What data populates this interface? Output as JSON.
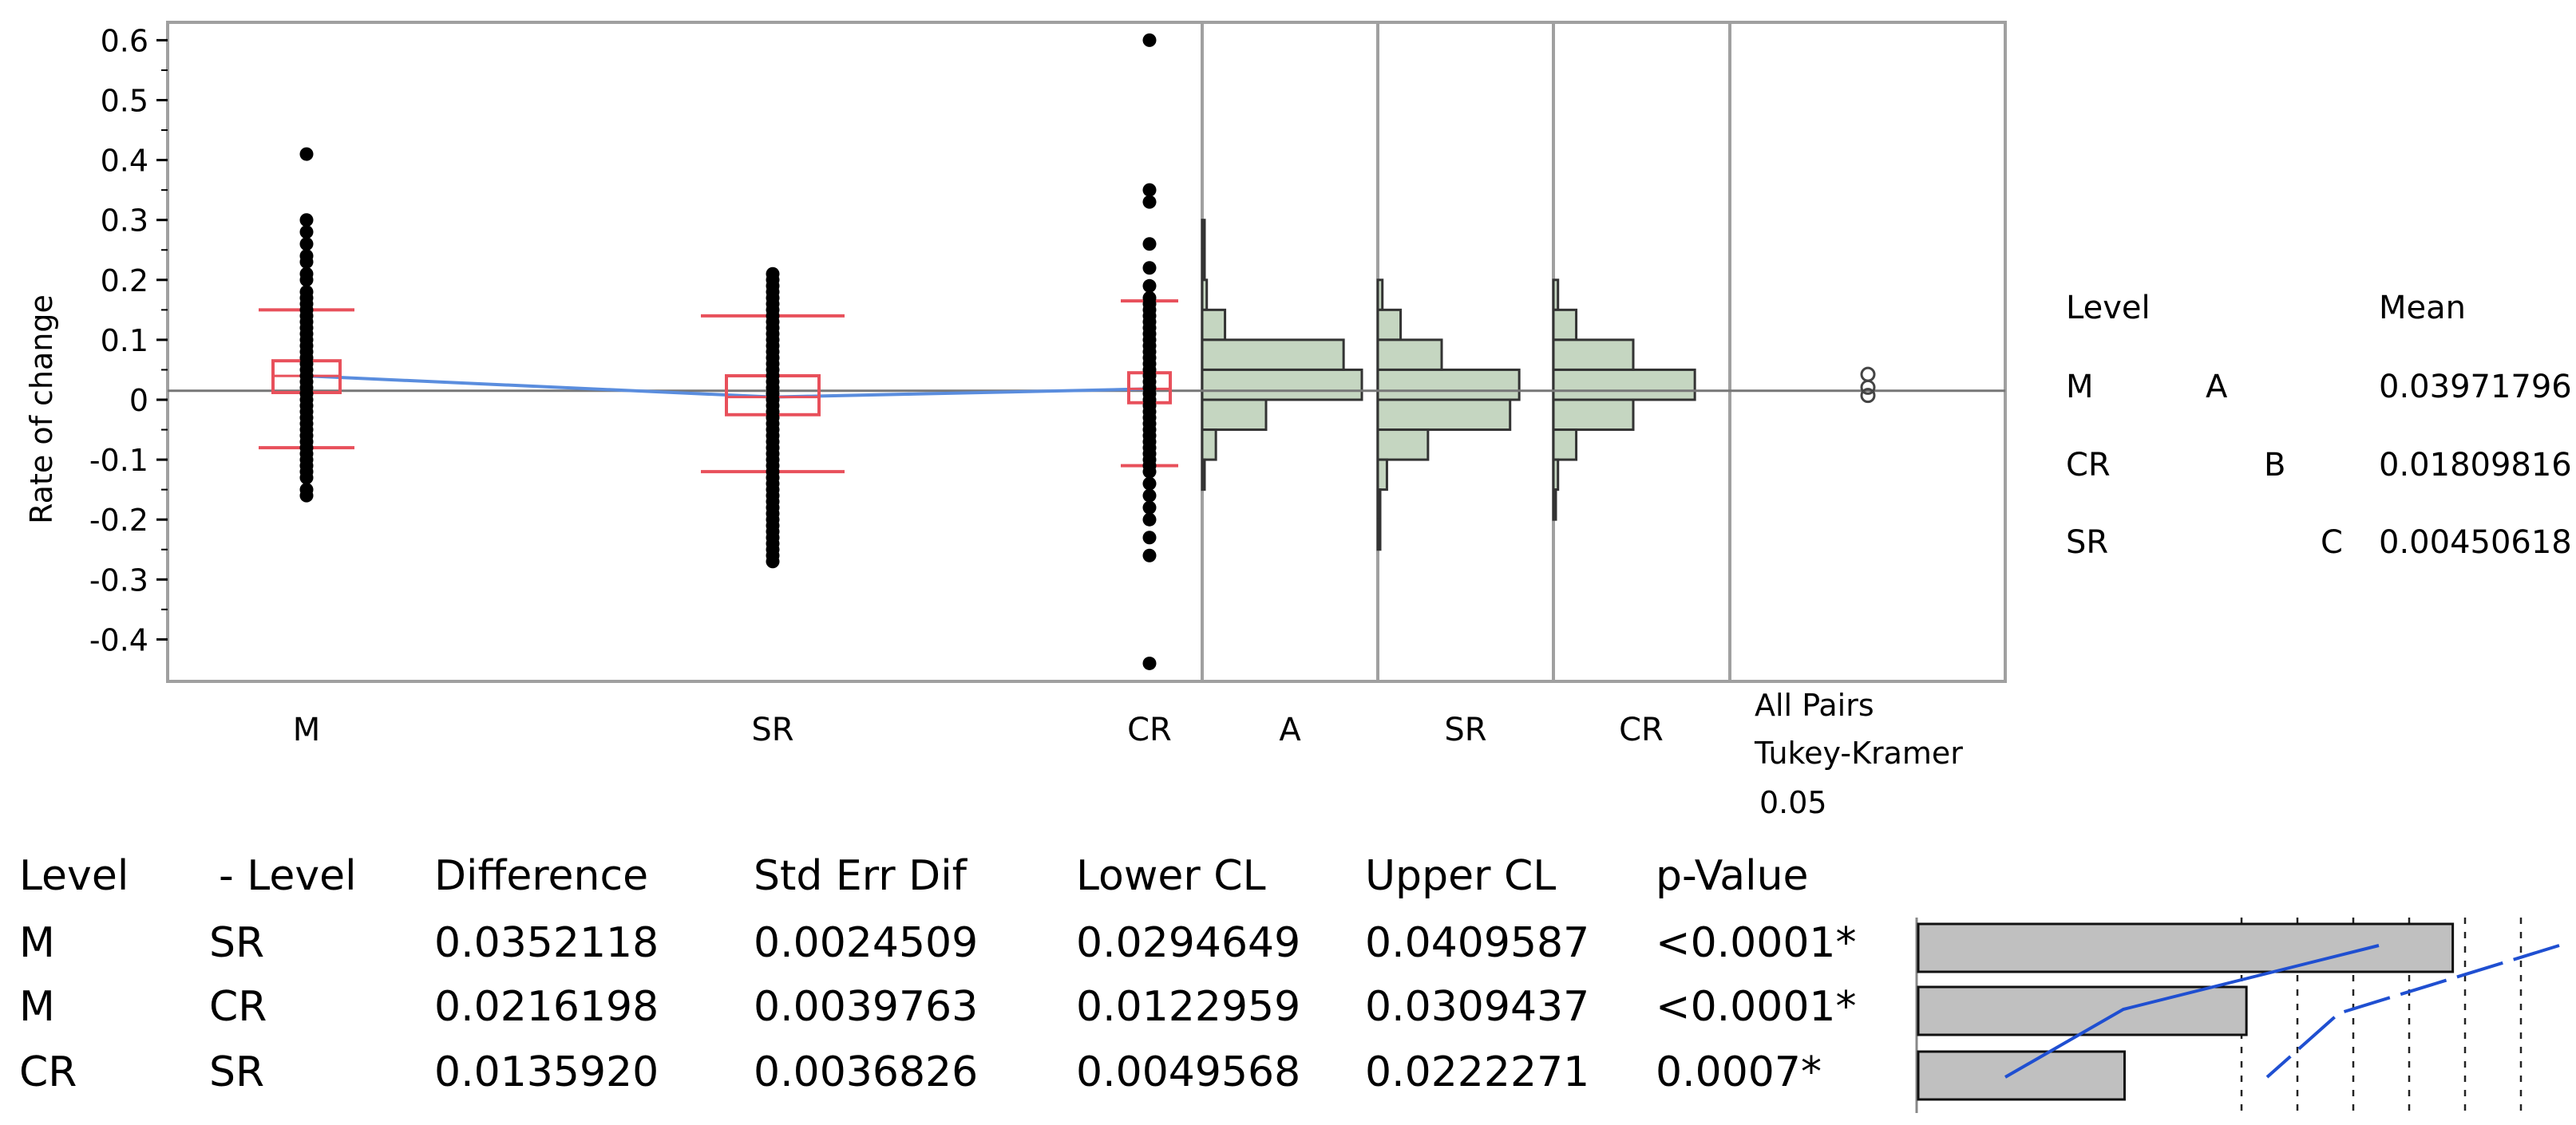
{
  "chart_data": {
    "type": "scatter",
    "ylabel": "Rate of change",
    "ylim": [
      -0.45,
      0.65
    ],
    "y_ticks": [
      "0.6",
      "0.5",
      "0.4",
      "0.3",
      "0.2",
      "0.1",
      "0",
      "-0.1",
      "-0.2",
      "-0.3",
      "-0.4"
    ],
    "y_tick_values": [
      0.6,
      0.5,
      0.4,
      0.3,
      0.2,
      0.1,
      0,
      -0.1,
      -0.2,
      -0.3,
      -0.4
    ],
    "grand_mean": 0.015,
    "groups": [
      {
        "name": "M",
        "mean": 0.0397,
        "q1": 0.012,
        "q3": 0.065,
        "whisker_low": -0.08,
        "whisker_high": 0.15,
        "points": [
          0.41,
          0.3,
          0.28,
          0.26,
          0.24,
          0.23,
          0.21,
          0.2,
          0.18,
          0.17,
          0.16,
          0.15,
          0.14,
          0.13,
          0.12,
          0.11,
          0.1,
          0.09,
          0.08,
          0.07,
          0.06,
          0.05,
          0.04,
          0.03,
          0.02,
          0.01,
          0.0,
          -0.01,
          -0.02,
          -0.03,
          -0.04,
          -0.05,
          -0.06,
          -0.07,
          -0.08,
          -0.09,
          -0.1,
          -0.11,
          -0.12,
          -0.13,
          -0.15,
          -0.16
        ]
      },
      {
        "name": "SR",
        "mean": 0.0045,
        "q1": -0.025,
        "q3": 0.04,
        "whisker_low": -0.12,
        "whisker_high": 0.14,
        "points": [
          0.21,
          0.2,
          0.19,
          0.18,
          0.17,
          0.16,
          0.15,
          0.14,
          0.13,
          0.12,
          0.11,
          0.1,
          0.09,
          0.08,
          0.07,
          0.06,
          0.05,
          0.04,
          0.03,
          0.02,
          0.01,
          0.0,
          -0.01,
          -0.02,
          -0.03,
          -0.04,
          -0.05,
          -0.06,
          -0.07,
          -0.08,
          -0.09,
          -0.1,
          -0.11,
          -0.12,
          -0.13,
          -0.14,
          -0.15,
          -0.16,
          -0.17,
          -0.18,
          -0.19,
          -0.2,
          -0.21,
          -0.22,
          -0.23,
          -0.24,
          -0.25,
          -0.26,
          -0.27
        ]
      },
      {
        "name": "CR",
        "mean": 0.0181,
        "q1": -0.005,
        "q3": 0.045,
        "whisker_low": -0.11,
        "whisker_high": 0.165,
        "points": [
          0.6,
          0.35,
          0.33,
          0.26,
          0.22,
          0.19,
          0.17,
          0.16,
          0.15,
          0.14,
          0.13,
          0.12,
          0.11,
          0.1,
          0.09,
          0.08,
          0.07,
          0.06,
          0.05,
          0.04,
          0.03,
          0.02,
          0.01,
          0.0,
          -0.01,
          -0.02,
          -0.03,
          -0.04,
          -0.05,
          -0.06,
          -0.07,
          -0.08,
          -0.09,
          -0.1,
          -0.11,
          -0.12,
          -0.14,
          -0.16,
          -0.18,
          -0.2,
          -0.23,
          -0.26,
          -0.44
        ]
      }
    ],
    "histograms": [
      {
        "name": "A",
        "bin_width": 0.05,
        "bins": [
          {
            "start": 0.25,
            "count": 1
          },
          {
            "start": 0.2,
            "count": 1
          },
          {
            "start": 0.15,
            "count": 2
          },
          {
            "start": 0.1,
            "count": 10
          },
          {
            "start": 0.05,
            "count": 62
          },
          {
            "start": 0.0,
            "count": 70
          },
          {
            "start": -0.05,
            "count": 28
          },
          {
            "start": -0.1,
            "count": 6
          },
          {
            "start": -0.15,
            "count": 1
          }
        ]
      },
      {
        "name": "SR",
        "bin_width": 0.05,
        "bins": [
          {
            "start": 0.15,
            "count": 2
          },
          {
            "start": 0.1,
            "count": 10
          },
          {
            "start": 0.05,
            "count": 28
          },
          {
            "start": 0.0,
            "count": 62
          },
          {
            "start": -0.05,
            "count": 58
          },
          {
            "start": -0.1,
            "count": 22
          },
          {
            "start": -0.15,
            "count": 4
          },
          {
            "start": -0.2,
            "count": 1
          },
          {
            "start": -0.25,
            "count": 1
          }
        ]
      },
      {
        "name": "CR",
        "bin_width": 0.05,
        "bins": [
          {
            "start": 0.15,
            "count": 2
          },
          {
            "start": 0.1,
            "count": 10
          },
          {
            "start": 0.05,
            "count": 35
          },
          {
            "start": 0.0,
            "count": 62
          },
          {
            "start": -0.05,
            "count": 35
          },
          {
            "start": -0.1,
            "count": 10
          },
          {
            "start": -0.15,
            "count": 2
          },
          {
            "start": -0.2,
            "count": 1
          }
        ]
      }
    ],
    "comparison_panel": {
      "title_lines": [
        "All Pairs",
        "Tukey-Kramer",
        "0.05"
      ],
      "circle_values": [
        0.0397,
        0.0181,
        0.0045
      ]
    },
    "connecting_letters": {
      "headers": {
        "level": "Level",
        "mean": "Mean"
      },
      "rows": [
        {
          "level": "M",
          "letter": "A",
          "letter_col": 0,
          "mean": "0.03971796"
        },
        {
          "level": "CR",
          "letter": "B",
          "letter_col": 1,
          "mean": "0.01809816"
        },
        {
          "level": "SR",
          "letter": "C",
          "letter_col": 2,
          "mean": "0.00450618"
        }
      ]
    },
    "ordered_differences": {
      "headers": [
        "Level",
        "- Level",
        "Difference",
        "Std Err Dif",
        "Lower CL",
        "Upper CL",
        "p-Value"
      ],
      "rows": [
        {
          "level": "M",
          "minus_level": "SR",
          "difference": "0.0352118",
          "std_err": "0.0024509",
          "lower": "0.0294649",
          "upper": "0.0409587",
          "p": "<0.0001*",
          "diff_value": 0.0352118,
          "lower_value": 0.0294649,
          "upper_value": 0.0409587
        },
        {
          "level": "M",
          "minus_level": "CR",
          "difference": "0.0216198",
          "std_err": "0.0039763",
          "lower": "0.0122959",
          "upper": "0.0309437",
          "p": "<0.0001*",
          "diff_value": 0.0216198,
          "lower_value": 0.0122959,
          "upper_value": 0.0309437
        },
        {
          "level": "CR",
          "minus_level": "SR",
          "difference": "0.0135920",
          "std_err": "0.0036826",
          "lower": "0.0049568",
          "upper": "0.0222271",
          "p": "0.0007*",
          "diff_value": 0.013592,
          "lower_value": 0.0049568,
          "upper_value": 0.0222271
        }
      ],
      "bar_axis_max": 0.0409587
    },
    "colors": {
      "points": "#000000",
      "box": "#e8505b",
      "mean_line": "#5a8dde",
      "hist_fill": "#c5d6c1",
      "frame": "#a0a0a0",
      "diff_bar": "#c0c0c0",
      "ci_line": "#1f4fd1"
    }
  }
}
